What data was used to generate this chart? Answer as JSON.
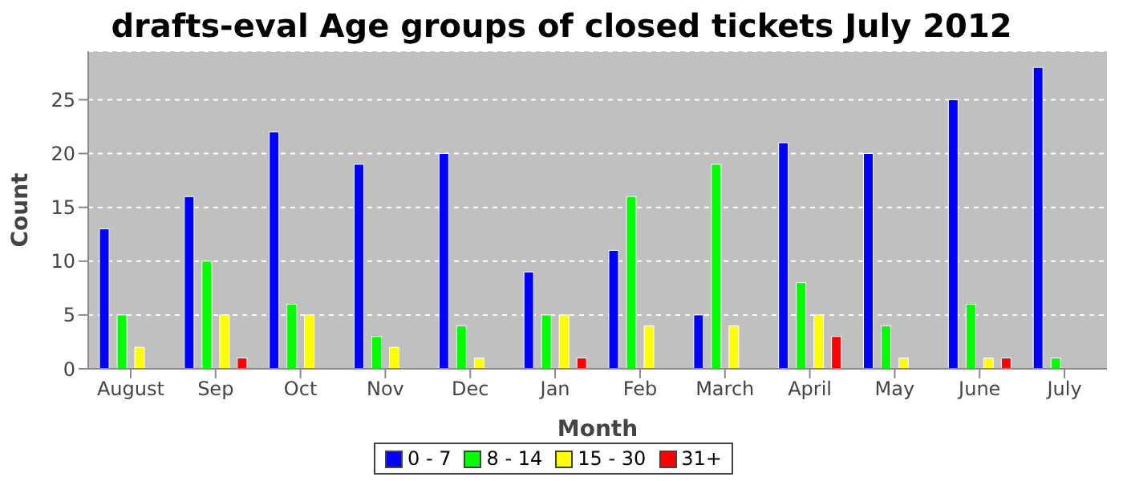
{
  "chart_data": {
    "type": "bar",
    "title": "drafts-eval Age groups of closed tickets July 2012",
    "xlabel": "Month",
    "ylabel": "Count",
    "categories": [
      "August",
      "Sep",
      "Oct",
      "Nov",
      "Dec",
      "Jan",
      "Feb",
      "March",
      "April",
      "May",
      "June",
      "July"
    ],
    "series": [
      {
        "name": "0 - 7",
        "color": "#0000ff",
        "values": [
          13,
          16,
          22,
          19,
          20,
          9,
          11,
          5,
          21,
          20,
          25,
          28
        ]
      },
      {
        "name": "8 - 14",
        "color": "#00ff00",
        "values": [
          5,
          10,
          6,
          3,
          4,
          5,
          16,
          19,
          8,
          4,
          6,
          1
        ]
      },
      {
        "name": "15 - 30",
        "color": "#ffff00",
        "values": [
          2,
          5,
          5,
          2,
          1,
          5,
          4,
          4,
          5,
          1,
          1,
          0
        ]
      },
      {
        "name": "31+",
        "color": "#ff0000",
        "values": [
          0,
          1,
          0,
          0,
          0,
          1,
          0,
          0,
          3,
          0,
          1,
          0
        ]
      }
    ],
    "ylim": [
      0,
      29.5
    ],
    "yticks": [
      0,
      5,
      10,
      15,
      20,
      25
    ],
    "grid": "y",
    "legend": "bottom"
  }
}
